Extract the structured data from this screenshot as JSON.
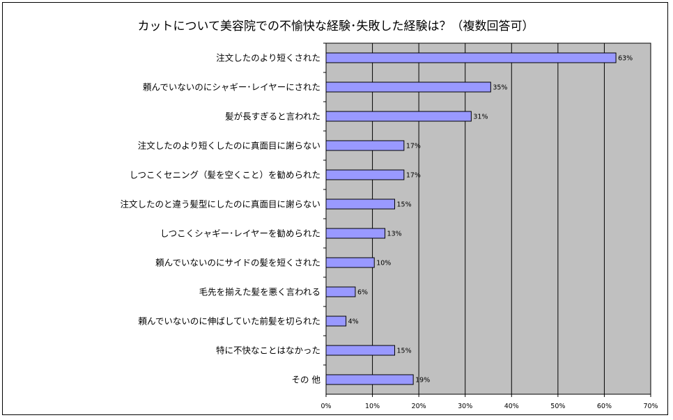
{
  "chart_data": {
    "type": "bar",
    "orientation": "horizontal",
    "title": "カットについて美容院での不愉快な経験･失敗した経験は？（複数回答可）",
    "xlabel": "",
    "ylabel": "",
    "xlim": [
      0,
      70
    ],
    "x_ticks": [
      "0%",
      "10%",
      "20%",
      "30%",
      "40%",
      "50%",
      "60%",
      "70%"
    ],
    "categories": [
      "注文したのより短くされた",
      "頼んでいないのにシャギー･レイヤーにされた",
      "髪が長すぎると言われた",
      "注文したのより短くしたのに真面目に謝らない",
      "しつこくセニング（髪を空くこと）を勧められた",
      "注文したのと違う髪型にしたのに真面目に謝らない",
      "しつこくシャギー･レイヤーを勧められた",
      "頼んでいないのにサイドの髪を短くされた",
      "毛先を揃えた髪を悪く言われる",
      "頼んでいないのに伸ばしていた前髪を切られた",
      "特に不快なことはなかった",
      "その 他"
    ],
    "values": [
      62.5,
      35.5,
      31.3,
      16.8,
      16.8,
      14.8,
      12.7,
      10.4,
      6.3,
      4.3,
      14.8,
      18.8
    ],
    "value_labels": [
      "63%",
      "35%",
      "31%",
      "17%",
      "17%",
      "15%",
      "13%",
      "10%",
      "6%",
      "4%",
      "15%",
      "19%"
    ],
    "grid": true,
    "colors": {
      "bar": "#9999FF",
      "plot_bg": "#C0C0C0",
      "grid": "#000000"
    }
  }
}
